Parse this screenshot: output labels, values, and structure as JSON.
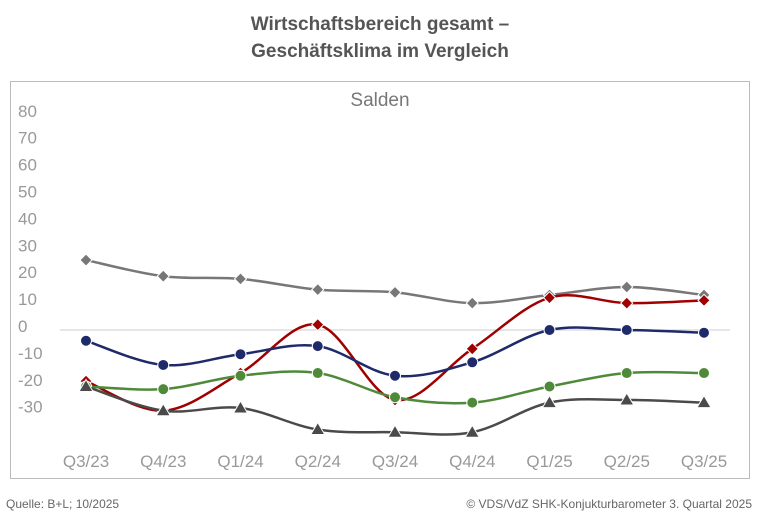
{
  "title_line1": "Wirtschaftsbereich gesamt –",
  "title_line2": "Geschäftsklima im Vergleich",
  "footer_left": "Quelle: B+L; 10/2025",
  "footer_right": "© VDS/VdZ SHK-Konjukturbarometer 3. Quartal 2025",
  "chart_data": {
    "type": "line",
    "subtitle": "Salden",
    "categories": [
      "Q3/23",
      "Q4/23",
      "Q1/24",
      "Q2/24",
      "Q3/24",
      "Q4/24",
      "Q1/25",
      "Q2/25",
      "Q3/25"
    ],
    "yticks": [
      80,
      70,
      60,
      50,
      40,
      30,
      20,
      10,
      0,
      -10,
      -20,
      -30
    ],
    "ylim": [
      -40,
      80
    ],
    "grid": false,
    "series": [
      {
        "color": "#777777",
        "marker": "diamond",
        "values": [
          26,
          20,
          19,
          15,
          14,
          10,
          13,
          16,
          13
        ]
      },
      {
        "color": "#a00000",
        "marker": "diamond",
        "values": [
          -19,
          -30,
          -16,
          2,
          -26,
          -7,
          12,
          10,
          11
        ]
      },
      {
        "color": "#1f2a6b",
        "marker": "circle",
        "values": [
          -4,
          -13,
          -9,
          -6,
          -17,
          -12,
          0,
          0,
          -1
        ]
      },
      {
        "color": "#4f8a3a",
        "marker": "circle",
        "values": [
          -21,
          -22,
          -17,
          -16,
          -25,
          -27,
          -21,
          -16,
          -16
        ]
      },
      {
        "color": "#4a4a4a",
        "marker": "triangle",
        "values": [
          -21,
          -30,
          -29,
          -37,
          -38,
          -38,
          -27,
          -26,
          -27
        ]
      }
    ]
  }
}
